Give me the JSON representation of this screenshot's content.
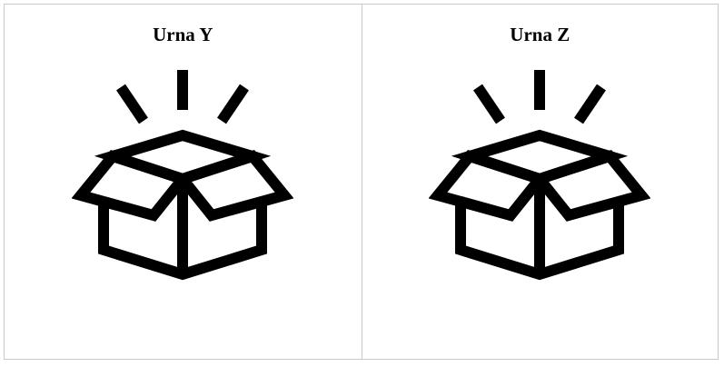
{
  "colors": {
    "icon": "#000000",
    "divider": "#c9c9c9",
    "background": "#ffffff"
  },
  "urns": [
    {
      "label": "Urna Y",
      "icon": "open-box-icon"
    },
    {
      "label": "Urna Z",
      "icon": "open-box-icon"
    }
  ]
}
